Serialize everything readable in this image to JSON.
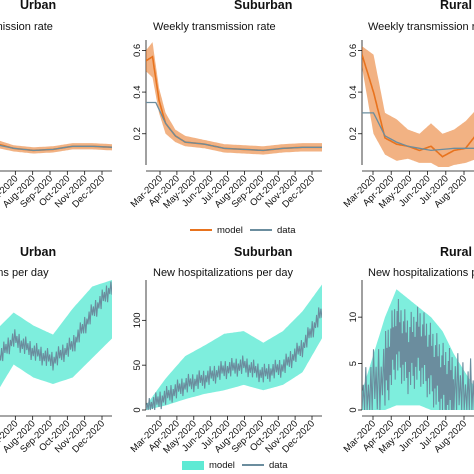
{
  "chart_data": [
    {
      "type": "line",
      "title": "Urban",
      "subtitle": "Weekly transmission rate",
      "subtitle_visible": "nsmission rate",
      "xlabel": "",
      "ylabel": "",
      "x_ticks": [
        "2020",
        "Jul-2020",
        "Aug-2020",
        "Sep-2020",
        "Oct-2020",
        "Nov-2020",
        "Dec-2020"
      ],
      "y_ticks": [],
      "series": [
        {
          "name": "model",
          "color": "#e8731e",
          "x": [
            "Jun-2020",
            "Jul-2020",
            "Aug-2020",
            "Sep-2020",
            "Oct-2020",
            "Nov-2020",
            "Dec-2020"
          ],
          "values": [
            0.155,
            0.13,
            0.12,
            0.125,
            0.14,
            0.14,
            0.135
          ],
          "band_low": [
            0.135,
            0.115,
            0.105,
            0.11,
            0.125,
            0.125,
            0.12
          ],
          "band_high": [
            0.175,
            0.145,
            0.135,
            0.14,
            0.155,
            0.155,
            0.15
          ]
        },
        {
          "name": "data",
          "color": "#6b8d9e",
          "x": [
            "Jun-2020",
            "Jul-2020",
            "Aug-2020",
            "Sep-2020",
            "Oct-2020",
            "Nov-2020",
            "Dec-2020"
          ],
          "values": [
            0.15,
            0.13,
            0.12,
            0.125,
            0.14,
            0.14,
            0.135
          ]
        }
      ],
      "ylim": [
        0.05,
        0.65
      ]
    },
    {
      "type": "line",
      "title": "Suburban",
      "subtitle": "Weekly transmission rate",
      "x_ticks": [
        "Mar-2020",
        "Apr-2020",
        "May-2020",
        "Jun-2020",
        "Jul-2020",
        "Aug-2020",
        "Sep-2020",
        "Oct-2020",
        "Nov-2020",
        "Dec-2020"
      ],
      "y_ticks": [
        "0.2",
        "0.4",
        "0.6"
      ],
      "series": [
        {
          "name": "model",
          "color": "#e8731e",
          "x": [
            "Mar-2020",
            "Mar-2020",
            "Mar-2020",
            "Apr-2020",
            "Apr-2020",
            "May-2020",
            "Jun-2020",
            "Jul-2020",
            "Aug-2020",
            "Sep-2020",
            "Oct-2020",
            "Nov-2020",
            "Dec-2020"
          ],
          "values": [
            0.55,
            0.57,
            0.36,
            0.25,
            0.19,
            0.16,
            0.15,
            0.13,
            0.125,
            0.12,
            0.13,
            0.135,
            0.135
          ],
          "band_low": [
            0.5,
            0.47,
            0.3,
            0.2,
            0.16,
            0.14,
            0.13,
            0.11,
            0.105,
            0.1,
            0.11,
            0.115,
            0.115
          ],
          "band_high": [
            0.6,
            0.64,
            0.42,
            0.3,
            0.22,
            0.19,
            0.17,
            0.15,
            0.145,
            0.14,
            0.15,
            0.155,
            0.155
          ]
        },
        {
          "name": "data",
          "color": "#6b8d9e",
          "x": [
            "Mar-2020",
            "Mar-2020",
            "Apr-2020",
            "Apr-2020",
            "May-2020",
            "Jun-2020",
            "Jul-2020",
            "Aug-2020",
            "Sep-2020",
            "Oct-2020",
            "Nov-2020",
            "Dec-2020"
          ],
          "values": [
            0.35,
            0.35,
            0.25,
            0.19,
            0.16,
            0.15,
            0.13,
            0.125,
            0.12,
            0.13,
            0.135,
            0.135
          ]
        }
      ],
      "ylim": [
        0.05,
        0.65
      ]
    },
    {
      "type": "line",
      "title": "Rural",
      "subtitle": "Weekly transmission rate",
      "x_ticks": [
        "Mar-2020",
        "Apr-2020",
        "May-2020",
        "Jun-2020",
        "Jul-2020",
        "Aug-2020"
      ],
      "y_ticks": [
        "0.2",
        "0.4",
        "0.6"
      ],
      "series": [
        {
          "name": "model",
          "color": "#e8731e",
          "x": [
            "Mar-2020",
            "Mar-2020",
            "Apr-2020",
            "Apr-2020",
            "May-2020",
            "May-2020",
            "Jun-2020",
            "Jun-2020",
            "Jul-2020",
            "Jul-2020",
            "Aug-2020"
          ],
          "values": [
            0.58,
            0.4,
            0.18,
            0.15,
            0.14,
            0.12,
            0.14,
            0.09,
            0.12,
            0.13,
            0.2
          ],
          "band_low": [
            0.52,
            0.2,
            0.1,
            0.07,
            0.08,
            0.06,
            0.06,
            0.03,
            0.05,
            0.06,
            0.08
          ],
          "band_high": [
            0.62,
            0.58,
            0.3,
            0.27,
            0.22,
            0.2,
            0.25,
            0.2,
            0.22,
            0.26,
            0.32
          ]
        },
        {
          "name": "data",
          "color": "#6b8d9e",
          "x": [
            "Mar-2020",
            "Mar-2020",
            "Apr-2020",
            "Apr-2020",
            "May-2020",
            "Jun-2020",
            "Jul-2020",
            "Aug-2020"
          ],
          "values": [
            0.3,
            0.3,
            0.19,
            0.16,
            0.14,
            0.12,
            0.13,
            0.13
          ]
        }
      ],
      "ylim": [
        0.05,
        0.65
      ]
    },
    {
      "type": "line",
      "title": "Urban",
      "subtitle": "New hospitalizations per day",
      "subtitle_visible": "talizations per day",
      "x_ticks": [
        "2020",
        "Jul-2020",
        "Aug-2020",
        "Sep-2020",
        "Oct-2020",
        "Nov-2020",
        "Dec-2020"
      ],
      "series": [
        {
          "name": "model",
          "color": "#5eead4",
          "x": [
            "Jun-2020",
            "Jul-2020",
            "Aug-2020",
            "Sep-2020",
            "Oct-2020",
            "Nov-2020",
            "Dec-2020"
          ],
          "values": [
            0.35,
            0.55,
            0.45,
            0.38,
            0.5,
            0.75,
            0.95
          ],
          "band_low": [
            0.1,
            0.35,
            0.25,
            0.2,
            0.25,
            0.4,
            0.55
          ],
          "band_high": [
            0.6,
            0.75,
            0.65,
            0.58,
            0.78,
            0.95,
            1.0
          ]
        },
        {
          "name": "data",
          "color": "#6b8d9e",
          "x": [
            "Jun-2020",
            "Jul-2020",
            "Aug-2020",
            "Sep-2020",
            "Oct-2020",
            "Nov-2020",
            "Dec-2020"
          ],
          "values": [
            0.35,
            0.55,
            0.45,
            0.38,
            0.5,
            0.75,
            0.95
          ]
        }
      ]
    },
    {
      "type": "line",
      "title": "Suburban",
      "subtitle": "New hospitalizations per day",
      "x_ticks": [
        "Mar-2020",
        "Apr-2020",
        "May-2020",
        "Jun-2020",
        "Jul-2020",
        "Aug-2020",
        "Sep-2020",
        "Oct-2020",
        "Nov-2020",
        "Dec-2020"
      ],
      "y_ticks": [
        "0",
        "50",
        "100"
      ],
      "series": [
        {
          "name": "model",
          "color": "#5eead4",
          "x": [
            "Mar-2020",
            "Apr-2020",
            "May-2020",
            "Jun-2020",
            "Jul-2020",
            "Aug-2020",
            "Sep-2020",
            "Oct-2020",
            "Nov-2020",
            "Dec-2020"
          ],
          "values": [
            2,
            15,
            28,
            35,
            45,
            50,
            40,
            48,
            70,
            110
          ],
          "band_low": [
            0,
            5,
            12,
            18,
            22,
            28,
            22,
            28,
            42,
            80
          ],
          "band_high": [
            5,
            35,
            60,
            72,
            85,
            88,
            75,
            88,
            110,
            140
          ]
        },
        {
          "name": "data",
          "color": "#6b8d9e",
          "x": [
            "Mar-2020",
            "Apr-2020",
            "May-2020",
            "Jun-2020",
            "Jul-2020",
            "Aug-2020",
            "Sep-2020",
            "Oct-2020",
            "Nov-2020",
            "Dec-2020"
          ],
          "values": [
            2,
            15,
            28,
            35,
            45,
            50,
            40,
            48,
            70,
            110
          ]
        }
      ],
      "ylim": [
        0,
        145
      ]
    },
    {
      "type": "line",
      "title": "Rural",
      "subtitle": "New hospitalizations per day",
      "subtitle_visible": "New hospitalizations pe",
      "x_ticks": [
        "Mar-2020",
        "Apr-2020",
        "May-2020",
        "Jun-2020",
        "Jul-2020",
        "Aug-2020"
      ],
      "y_ticks": [
        "0",
        "5",
        "10"
      ],
      "series": [
        {
          "name": "model",
          "color": "#5eead4",
          "x": [
            "Mar-2020",
            "Apr-2020",
            "Apr-2020",
            "May-2020",
            "May-2020",
            "Jun-2020",
            "Jun-2020",
            "Jul-2020",
            "Aug-2020"
          ],
          "values": [
            0.5,
            3,
            4.5,
            5,
            4,
            3,
            2,
            1.5,
            0.5
          ],
          "band_low": [
            0,
            0,
            0.5,
            0.5,
            0.5,
            0,
            0,
            0,
            0
          ],
          "band_high": [
            2,
            10,
            13,
            12,
            11,
            10,
            8.5,
            6,
            2
          ]
        },
        {
          "name": "data",
          "color": "#6b8d9e",
          "x": [
            "Mar-2020",
            "Apr-2020",
            "Apr-2020",
            "May-2020",
            "May-2020",
            "Jun-2020",
            "Jun-2020",
            "Jul-2020",
            "Aug-2020"
          ],
          "values": [
            0.5,
            4,
            8,
            6,
            7,
            5,
            3,
            2,
            1
          ]
        }
      ],
      "ylim": [
        0,
        14
      ]
    }
  ],
  "legends": [
    {
      "items": [
        {
          "label": "model",
          "color": "#e8731e"
        },
        {
          "label": "data",
          "color": "#6b8d9e"
        }
      ]
    },
    {
      "items": [
        {
          "label": "model",
          "color": "#5eead4"
        },
        {
          "label": "data",
          "color": "#6b8d9e"
        }
      ]
    }
  ]
}
